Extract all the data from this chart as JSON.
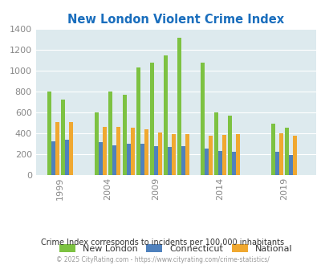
{
  "title": "New London Violent Crime Index",
  "years": [
    1999,
    2000,
    2004,
    2005,
    2009,
    2010,
    2011,
    2012,
    2013,
    2014,
    2015,
    2016,
    2019,
    2020
  ],
  "new_london": [
    800,
    720,
    600,
    800,
    770,
    1030,
    1080,
    1150,
    1320,
    1080,
    600,
    570,
    490,
    450
  ],
  "connecticut": [
    325,
    340,
    315,
    285,
    300,
    300,
    275,
    270,
    275,
    250,
    230,
    220,
    220,
    190
  ],
  "national": [
    510,
    510,
    465,
    460,
    450,
    435,
    410,
    395,
    395,
    375,
    385,
    390,
    400,
    380
  ],
  "color_nl": "#7dc242",
  "color_ct": "#4f81bd",
  "color_nat": "#f0a830",
  "bg_color": "#ddeaee",
  "ylim": [
    0,
    1400
  ],
  "yticks": [
    0,
    200,
    400,
    600,
    800,
    1000,
    1200,
    1400
  ],
  "xtick_labels": [
    "1999",
    "2004",
    "2009",
    "2014",
    "2019"
  ],
  "legend_labels": [
    "New London",
    "Connecticut",
    "National"
  ],
  "subtitle": "Crime Index corresponds to incidents per 100,000 inhabitants",
  "footer": "© 2025 CityRating.com - https://www.cityrating.com/crime-statistics/",
  "title_color": "#1a6ebd",
  "subtitle_color": "#333333",
  "footer_color": "#999999",
  "axis_label_color": "#888888",
  "grid_color": "#ffffff"
}
